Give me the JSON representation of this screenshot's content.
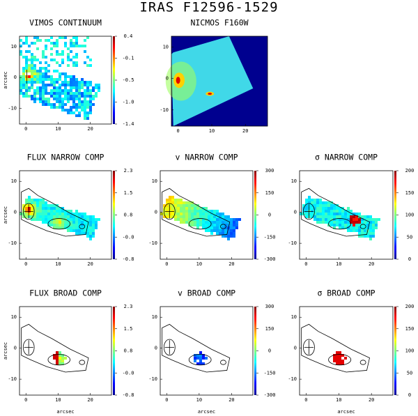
{
  "title": "IRAS F12596-1529",
  "panels": [
    {
      "title": "VIMOS CONTINUUM",
      "colorbar_ticks": [
        "0.4",
        "-0.1",
        "-0.5",
        "-1.0",
        "-1.4"
      ],
      "xticks": [
        "0",
        "10",
        "20"
      ],
      "yticks": [
        "10",
        "0",
        "-10"
      ],
      "ylabel": "arcsec"
    },
    {
      "title": "NICMOS F160W",
      "xticks": [
        "0",
        "10",
        "20"
      ],
      "yticks": [
        "10",
        "0",
        "-10"
      ]
    },
    {
      "title": "FLUX NARROW COMP",
      "colorbar_ticks": [
        "2.3",
        "1.5",
        "0.8",
        "-0.0",
        "-0.8"
      ],
      "xticks": [
        "0",
        "10",
        "20"
      ],
      "yticks": [
        "10",
        "0",
        "-10"
      ],
      "ylabel": "arcsec"
    },
    {
      "title": "v NARROW COMP",
      "colorbar_ticks": [
        "300",
        "150",
        "0",
        "-150",
        "-300"
      ],
      "xticks": [
        "0",
        "10",
        "20"
      ],
      "yticks": [
        "10",
        "0",
        "-10"
      ]
    },
    {
      "title": "σ NARROW COMP",
      "colorbar_ticks": [
        "200",
        "150",
        "100",
        "50",
        "0"
      ],
      "xticks": [
        "0",
        "10",
        "20"
      ],
      "yticks": [
        "10",
        "0",
        "-10"
      ]
    },
    {
      "title": "FLUX BROAD COMP",
      "colorbar_ticks": [
        "2.3",
        "1.5",
        "0.8",
        "-0.0",
        "-0.8"
      ],
      "xticks": [
        "0",
        "10",
        "20"
      ],
      "yticks": [
        "10",
        "0",
        "-10"
      ],
      "xlabel": "arcsec",
      "ylabel": "arcsec"
    },
    {
      "title": "v BROAD COMP",
      "colorbar_ticks": [
        "300",
        "150",
        "0",
        "-150",
        "-300"
      ],
      "xticks": [
        "0",
        "10",
        "20"
      ],
      "yticks": [
        "10",
        "0",
        "-10"
      ],
      "xlabel": "arcsec"
    },
    {
      "title": "σ BROAD COMP",
      "colorbar_ticks": [
        "200",
        "150",
        "100",
        "50",
        "0"
      ],
      "xticks": [
        "0",
        "10",
        "20"
      ],
      "yticks": [
        "10",
        "0",
        "-10"
      ],
      "xlabel": "arcsec"
    }
  ]
}
